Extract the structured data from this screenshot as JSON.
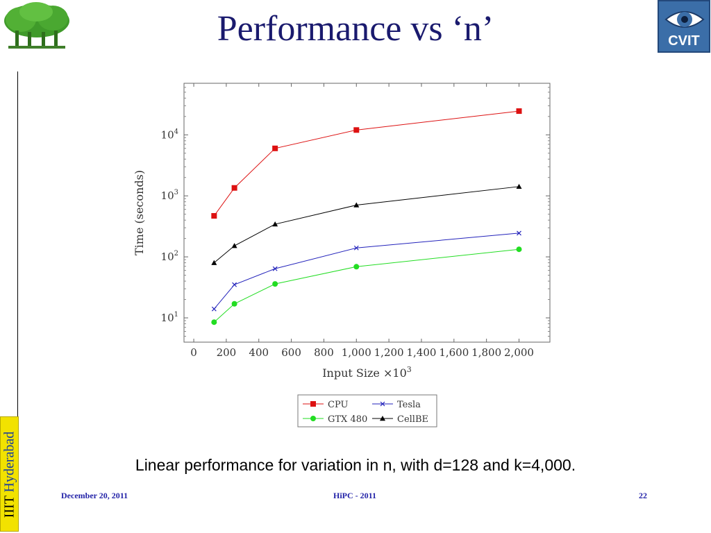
{
  "slide": {
    "title": "Performance vs ‘n’",
    "caption": "Linear performance for variation in n, with d=128 and k=4,000.",
    "footer_date": "December 20, 2011",
    "footer_event": "HiPC - 2011",
    "footer_page": "22",
    "side_tab_prefix": "IIIT",
    "side_tab_city": "Hyderabad",
    "logo_right_text": "CVIT",
    "logo_left_icon": "tree-logo",
    "logo_right_icon": "eye-logo"
  },
  "colors": {
    "title": "#1a1a6e",
    "cpu": "#dd1111",
    "tesla": "#2222bb",
    "gtx": "#22dd22",
    "cellbe": "#000000"
  },
  "chart_data": {
    "type": "line",
    "xlabel": "Input Size ×10",
    "xlabel_exp": "3",
    "ylabel": "Time (seconds)",
    "xlim": [
      -60,
      2190
    ],
    "ylim": [
      4,
      70000
    ],
    "yscale": "log",
    "x_ticks": [
      0,
      200,
      400,
      600,
      800,
      1000,
      1200,
      1400,
      1600,
      1800,
      2000
    ],
    "x_tick_labels": [
      "0",
      "200",
      "400",
      "600",
      "800",
      "1,000",
      "1,200",
      "1,400",
      "1,600",
      "1,800",
      "2,000"
    ],
    "y_ticks": [
      10,
      100,
      1000,
      10000
    ],
    "y_tick_labels": [
      {
        "base": "10",
        "exp": "1"
      },
      {
        "base": "10",
        "exp": "2"
      },
      {
        "base": "10",
        "exp": "3"
      },
      {
        "base": "10",
        "exp": "4"
      }
    ],
    "x": [
      125,
      250,
      500,
      1000,
      2000
    ],
    "series": [
      {
        "name": "CPU",
        "values": [
          470,
          1350,
          6000,
          12000,
          24500
        ],
        "marker": "square",
        "color": "#dd1111"
      },
      {
        "name": "Tesla",
        "values": [
          14,
          35,
          64,
          140,
          245
        ],
        "marker": "x",
        "color": "#2222bb"
      },
      {
        "name": "GTX 480",
        "values": [
          8.5,
          17,
          36,
          69,
          133
        ],
        "marker": "circle",
        "color": "#22dd22"
      },
      {
        "name": "CellBE",
        "values": [
          80,
          152,
          343,
          705,
          1420
        ],
        "marker": "triangle",
        "color": "#000000"
      }
    ],
    "legend_position": "bottom",
    "grid": false
  }
}
